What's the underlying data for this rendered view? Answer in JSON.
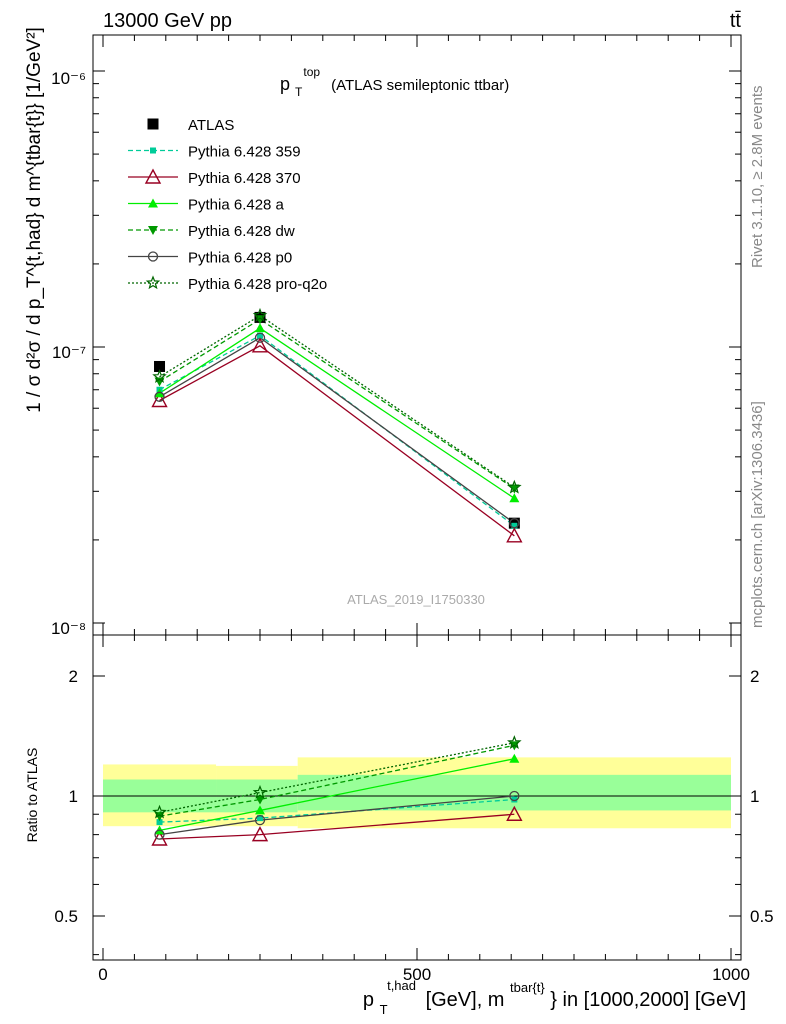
{
  "header": {
    "left": "13000 GeV pp",
    "right": "tt̄",
    "side_top": "Rivet 3.1.10, ≥ 2.8M events",
    "side_bottom": "mcplots.cern.ch [arXiv:1306.3436]",
    "watermark": "ATLAS_2019_I1750330"
  },
  "chart_data": [
    {
      "type": "line",
      "panel": "main",
      "title_main": "p",
      "title_sub": "T",
      "title_sup": "top",
      "title_rest": "(ATLAS semileptonic ttbar)",
      "ylabel": "1 / σ d²σ / d p_T^{t,had} d m^{tbar{t}} [1/GeV²]",
      "yscale": "log",
      "ylim": [
        1e-08,
        1.5e-06
      ],
      "ytick_labels": [
        "10⁻⁸",
        "10⁻⁷",
        "10⁻⁶"
      ],
      "x": [
        90,
        250,
        655
      ],
      "series": [
        {
          "name": "ATLAS",
          "color": "#000000",
          "marker": "square",
          "values": [
            8.5e-08,
            1.28e-07,
            2.3e-08
          ]
        },
        {
          "name": "Pythia 6.428 359",
          "color": "#00cc99",
          "marker": "small-square",
          "dash": "dashed",
          "values": [
            7e-08,
            1.1e-07,
            2.25e-08
          ]
        },
        {
          "name": "Pythia 6.428 370",
          "color": "#990022",
          "marker": "open-triangle",
          "dash": "solid",
          "values": [
            6.4e-08,
            1.01e-07,
            2.07e-08
          ]
        },
        {
          "name": "Pythia 6.428 a",
          "color": "#00ee00",
          "marker": "triangle",
          "dash": "solid",
          "values": [
            6.8e-08,
            1.17e-07,
            2.83e-08
          ]
        },
        {
          "name": "Pythia 6.428 dw",
          "color": "#009900",
          "marker": "down-triangle",
          "dash": "dashed",
          "values": [
            7.5e-08,
            1.26e-07,
            3.07e-08
          ]
        },
        {
          "name": "Pythia 6.428 p0",
          "color": "#444444",
          "marker": "open-circle",
          "dash": "solid",
          "values": [
            6.6e-08,
            1.08e-07,
            2.3e-08
          ]
        },
        {
          "name": "Pythia 6.428 pro-q2o",
          "color": "#006600",
          "marker": "star",
          "dash": "dotted",
          "values": [
            7.8e-08,
            1.3e-07,
            3.1e-08
          ]
        }
      ]
    },
    {
      "type": "line",
      "panel": "ratio",
      "ylabel": "Ratio to ATLAS",
      "yscale": "log",
      "ylim": [
        0.4,
        2.5
      ],
      "ytick_labels": [
        "0.5",
        "1",
        "2"
      ],
      "xlim": [
        -20,
        1020
      ],
      "xtick_labels": [
        "0",
        "500",
        "1000"
      ],
      "xlabel_main": "p",
      "xlabel_sub": "T",
      "xlabel_sup": "t,had",
      "xlabel_mid": "[GeV], m",
      "xlabel_sup2": "tbar{t}",
      "xlabel_end": "} in [1000,2000] [GeV]",
      "bands": [
        {
          "x0": 0,
          "x1": 180,
          "y_inner": [
            0.91,
            1.1
          ],
          "y_outer": [
            0.84,
            1.2
          ]
        },
        {
          "x0": 180,
          "x1": 310,
          "y_inner": [
            0.91,
            1.1
          ],
          "y_outer": [
            0.84,
            1.19
          ]
        },
        {
          "x0": 310,
          "x1": 1000,
          "y_inner": [
            0.92,
            1.13
          ],
          "y_outer": [
            0.83,
            1.25
          ]
        }
      ],
      "x": [
        90,
        250,
        655
      ],
      "series": [
        {
          "name": "Pythia 6.428 359",
          "values": [
            0.86,
            0.88,
            0.98
          ]
        },
        {
          "name": "Pythia 6.428 370",
          "values": [
            0.78,
            0.8,
            0.9
          ]
        },
        {
          "name": "Pythia 6.428 a",
          "values": [
            0.82,
            0.92,
            1.24
          ]
        },
        {
          "name": "Pythia 6.428 dw",
          "values": [
            0.89,
            0.98,
            1.34
          ]
        },
        {
          "name": "Pythia 6.428 p0",
          "values": [
            0.8,
            0.87,
            1.0
          ]
        },
        {
          "name": "Pythia 6.428 pro-q2o",
          "values": [
            0.91,
            1.02,
            1.36
          ]
        }
      ]
    }
  ]
}
